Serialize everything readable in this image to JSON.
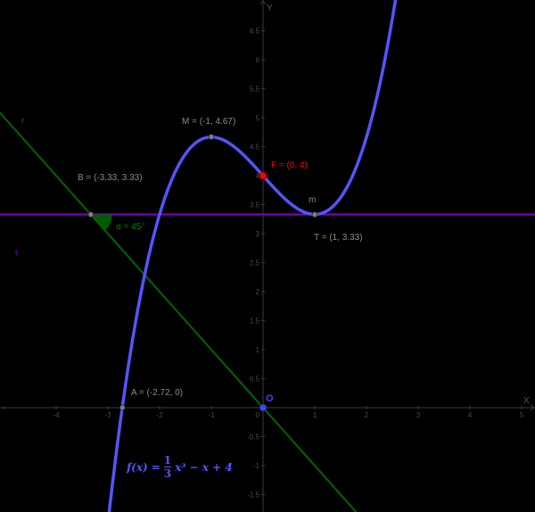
{
  "chart_data": {
    "type": "line",
    "title": "",
    "xlabel": "x",
    "ylabel": "y",
    "xlim": [
      -5.08,
      5.26
    ],
    "ylim": [
      -1.8,
      7.03
    ],
    "grid": false,
    "x_ticks": [
      -4,
      -3,
      -2,
      -1,
      1,
      2,
      3,
      4,
      5
    ],
    "x_tick_labels": [
      "-4",
      "-3",
      "-2",
      "-1",
      "1",
      "2",
      "3",
      "4",
      "5"
    ],
    "y_ticks": [
      -1.5,
      -1,
      -0.5,
      0.5,
      1,
      1.5,
      2,
      2.5,
      3,
      3.5,
      4,
      4.5,
      5,
      5.5,
      6,
      6.5
    ],
    "y_tick_labels": [
      "-1.5",
      "-1",
      "-0.5",
      "0.5",
      "1",
      "1.5",
      "2",
      "2.5",
      "3",
      "3.5",
      "4",
      "4.5",
      "5",
      "5.5",
      "6",
      "6.5"
    ],
    "origin_label": "0",
    "series": [
      {
        "name": "f",
        "kind": "function",
        "expression": "f(x) = 1/3 x^3 - x + 4",
        "color": "#5555ff"
      },
      {
        "name": "r",
        "kind": "line",
        "expression": "y = -x",
        "color": "#006400"
      },
      {
        "name": "t",
        "kind": "line",
        "expression": "y = 3.33",
        "color": "#7f00bf"
      }
    ],
    "points": [
      {
        "name": "M",
        "label": "M = (-1, 4.67)",
        "x": -1,
        "y": 4.67,
        "color": "#808080"
      },
      {
        "name": "F",
        "label": "F = (0, 4)",
        "x": 0,
        "y": 4,
        "color": "#ff0000"
      },
      {
        "name": "T",
        "label": "T = (1, 3.33)",
        "x": 1,
        "y": 3.33,
        "color": "#808080"
      },
      {
        "name": "B",
        "label": "B = (-3.33, 3.33)",
        "x": -3.33,
        "y": 3.33,
        "color": "#808080"
      },
      {
        "name": "A",
        "label": "A = (-2.72, 0)",
        "x": -2.72,
        "y": 0,
        "color": "#808080"
      },
      {
        "name": "O",
        "label": "O",
        "x": 0,
        "y": 0,
        "color": "#4040ff"
      }
    ],
    "annotations": [
      {
        "text": "α = 45°",
        "kind": "angle",
        "at": "B",
        "color": "#006400"
      },
      {
        "text": "m",
        "kind": "label",
        "near": "T"
      },
      {
        "text": "r",
        "kind": "line-label"
      },
      {
        "text": "t",
        "kind": "line-label"
      }
    ]
  },
  "labels": {
    "x_axis": "x",
    "y_axis": "y",
    "origin": "O",
    "zero": "0",
    "M": "M = (-1, 4.67)",
    "F_prefix": "F = ",
    "F_value": "(0, 4)",
    "T": "T = (1, 3.33)",
    "B": "B = (-3.33, 3.33)",
    "A": "A = (-2.72, 0)",
    "angle": "α = 45°",
    "m": "m",
    "r": "r",
    "t": "t"
  },
  "formula": {
    "lhs": "f(x)",
    "eq": "=",
    "num": "1",
    "den": "3",
    "term1": "x³",
    "rest": "− x + 4"
  }
}
